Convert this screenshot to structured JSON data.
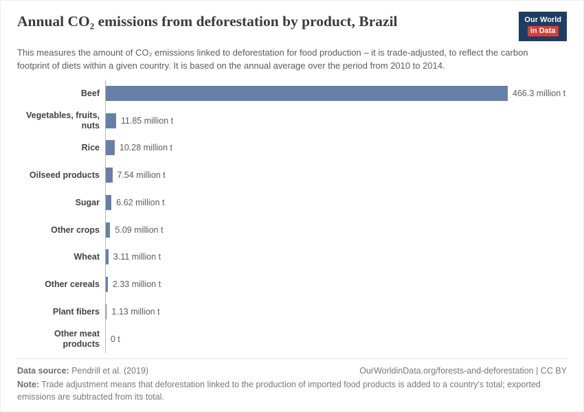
{
  "header": {
    "title": "Annual CO₂ emissions from deforestation by product, Brazil",
    "subtitle": "This measures the amount of CO₂ emissions linked to deforestation for food production – it is trade-adjusted, to reflect the carbon footprint of diets within a given country. It is based on the annual average over the period from 2010 to 2014.",
    "logo": {
      "line1": "Our World",
      "line2": "in Data",
      "bg_color": "#1d3d63",
      "accent_color": "#dc3d33"
    }
  },
  "chart_data": {
    "type": "bar",
    "orientation": "horizontal",
    "title": "Annual CO₂ emissions from deforestation by product, Brazil",
    "categories": [
      "Beef",
      "Vegetables, fruits, nuts",
      "Rice",
      "Oilseed products",
      "Sugar",
      "Other crops",
      "Wheat",
      "Other cereals",
      "Plant fibers",
      "Other meat products"
    ],
    "values": [
      466.3,
      11.85,
      10.28,
      7.54,
      6.62,
      5.09,
      3.11,
      2.33,
      1.13,
      0
    ],
    "value_labels": [
      "466.3 million t",
      "11.85 million t",
      "10.28 million t",
      "7.54 million t",
      "6.62 million t",
      "5.09 million t",
      "3.11 million t",
      "2.33 million t",
      "1.13 million t",
      "0 t"
    ],
    "unit": "million t",
    "xlabel": "",
    "ylabel": "",
    "xlim": [
      0,
      466.3
    ],
    "grid": false,
    "legend": "none",
    "bar_color": "#6580a8"
  },
  "footer": {
    "datasource_label": "Data source:",
    "datasource_value": " Pendrill et al. (2019)",
    "link": "OurWorldinData.org/forests-and-deforestation | CC BY",
    "note_label": "Note:",
    "note_text": " Trade adjustment means that deforestation linked to the production of imported food products is added to a country's total; exported emissions are subtracted from its total."
  }
}
